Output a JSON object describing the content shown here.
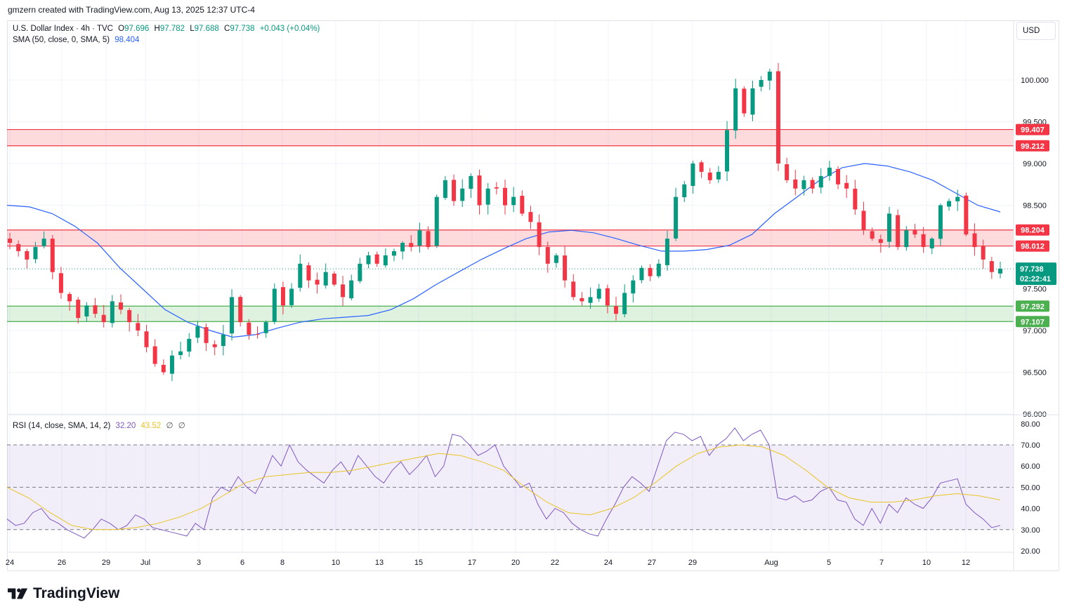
{
  "attribution": "gmzern created with TradingView.com, Aug 13, 2025 12:37 UTC-4",
  "legend": {
    "symbol": "U.S. Dollar Index · 4h · TVC",
    "o_label": "O",
    "o": "97.696",
    "h_label": "H",
    "h": "97.782",
    "l_label": "L",
    "l": "97.688",
    "c_label": "C",
    "c": "97.738",
    "change": "+0.043 (+0.04%)",
    "sma_label": "SMA (50, close, 0, SMA, 5)",
    "sma_value": "98.404",
    "rsi_label": "RSI (14, close, SMA, 14, 2)",
    "rsi_value": "32.20",
    "rsi_ma_value": "43.52",
    "rsi_extra1": "∅",
    "rsi_extra2": "∅"
  },
  "currency": "USD",
  "brand": "TradingView",
  "colors": {
    "up": "#089981",
    "down": "#f23645",
    "sma": "#2962ff",
    "rsi": "#7e57c2",
    "rsi_ma": "#e8c425",
    "resistance_zone": "#f23645",
    "support_zone": "#4caf50"
  },
  "chart_data": [
    {
      "type": "candlestick",
      "title": "U.S. Dollar Index · 4h · TVC",
      "x_tick_labels": [
        "24",
        "26",
        "29",
        "Jul",
        "3",
        "6",
        "8",
        "10",
        "13",
        "15",
        "17",
        "20",
        "22",
        "24",
        "27",
        "29",
        "Aug",
        "5",
        "7",
        "10",
        "12"
      ],
      "y_tick_labels": [
        "96.000",
        "96.500",
        "97.000",
        "97.500",
        "98.000",
        "98.500",
        "99.000",
        "99.500",
        "100.000"
      ],
      "ylim": [
        96.0,
        100.5
      ],
      "price_levels": [
        {
          "label": "99.407",
          "value": 99.407,
          "kind": "resistance"
        },
        {
          "label": "99.212",
          "value": 99.212,
          "kind": "resistance"
        },
        {
          "label": "98.204",
          "value": 98.204,
          "kind": "resistance"
        },
        {
          "label": "98.012",
          "value": 98.012,
          "kind": "resistance"
        },
        {
          "label": "97.292",
          "value": 97.292,
          "kind": "support"
        },
        {
          "label": "97.107",
          "value": 97.107,
          "kind": "support"
        }
      ],
      "last_price": {
        "label": "97.738",
        "value": 97.738,
        "countdown": "02:22:41"
      },
      "close_path": [
        98.05,
        97.95,
        97.85,
        98.0,
        98.1,
        97.7,
        97.45,
        97.35,
        97.15,
        97.3,
        97.2,
        97.1,
        97.35,
        97.25,
        97.1,
        97.0,
        96.8,
        96.6,
        96.5,
        96.7,
        96.75,
        96.9,
        97.05,
        96.85,
        96.8,
        96.95,
        97.4,
        97.1,
        96.95,
        96.95,
        97.1,
        97.5,
        97.3,
        97.5,
        97.8,
        97.6,
        97.55,
        97.7,
        97.55,
        97.4,
        97.6,
        97.8,
        97.9,
        97.8,
        97.9,
        97.95,
        98.05,
        98.0,
        98.2,
        98.0,
        98.6,
        98.8,
        98.55,
        98.7,
        98.85,
        98.5,
        98.7,
        98.7,
        98.5,
        98.6,
        98.4,
        98.3,
        98.0,
        97.8,
        97.9,
        97.6,
        97.4,
        97.35,
        97.4,
        97.5,
        97.3,
        97.2,
        97.45,
        97.6,
        97.75,
        97.65,
        97.8,
        98.1,
        98.6,
        98.75,
        99.0,
        98.9,
        98.8,
        98.9,
        99.4,
        99.9,
        99.6,
        99.9,
        100.0,
        100.1,
        99.0,
        98.8,
        98.7,
        98.8,
        98.7,
        98.85,
        98.95,
        98.75,
        98.7,
        98.45,
        98.2,
        98.1,
        98.05,
        98.4,
        98.0,
        98.2,
        98.15,
        98.0,
        98.1,
        98.5,
        98.55,
        98.6,
        98.15,
        98.0,
        97.85,
        97.7,
        97.74
      ],
      "sma_path": [
        98.5,
        98.48,
        98.4,
        98.25,
        98.05,
        97.75,
        97.5,
        97.25,
        97.1,
        97.0,
        96.92,
        96.95,
        97.03,
        97.1,
        97.14,
        97.16,
        97.18,
        97.25,
        97.38,
        97.55,
        97.7,
        97.85,
        97.98,
        98.1,
        98.18,
        98.2,
        98.17,
        98.1,
        98.02,
        97.95,
        97.95,
        97.97,
        98.02,
        98.15,
        98.4,
        98.6,
        98.8,
        98.95,
        99.0,
        98.97,
        98.9,
        98.8,
        98.65,
        98.5,
        98.42
      ],
      "rsi": {
        "levels": [
          30,
          50,
          70
        ],
        "ylim": [
          20,
          80
        ],
        "y_tick_labels": [
          "20.00",
          "30.00",
          "40.00",
          "50.00",
          "60.00",
          "70.00",
          "80.00"
        ],
        "last": 32.2,
        "ma_last": 43.52,
        "path": [
          35,
          32,
          33,
          38,
          40,
          35,
          33,
          30,
          28,
          26,
          30,
          35,
          33,
          30,
          32,
          37,
          35,
          31,
          30,
          29,
          28,
          27,
          33,
          30,
          45,
          50,
          48,
          55,
          50,
          47,
          55,
          65,
          60,
          70,
          62,
          58,
          55,
          52,
          58,
          62,
          56,
          65,
          60,
          55,
          52,
          58,
          62,
          56,
          60,
          65,
          55,
          60,
          75,
          74,
          70,
          65,
          67,
          70,
          60,
          55,
          50,
          52,
          42,
          35,
          40,
          38,
          33,
          30,
          28,
          27,
          35,
          42,
          50,
          55,
          52,
          48,
          60,
          72,
          76,
          75,
          72,
          74,
          65,
          70,
          73,
          78,
          72,
          75,
          77,
          70,
          45,
          44,
          46,
          43,
          44,
          48,
          50,
          44,
          43,
          35,
          32,
          40,
          33,
          42,
          38,
          45,
          42,
          40,
          45,
          52,
          53,
          54,
          42,
          38,
          35,
          31,
          32
        ],
        "ma_path": [
          50,
          45,
          38,
          32,
          30,
          30,
          31,
          33,
          36,
          40,
          46,
          52,
          55,
          56,
          57,
          57,
          58,
          60,
          62,
          64,
          66,
          65,
          62,
          58,
          50,
          43,
          38,
          37,
          40,
          45,
          52,
          60,
          66,
          69,
          70,
          69,
          65,
          58,
          50,
          45,
          43,
          43,
          44,
          46,
          47,
          46,
          44
        ]
      }
    }
  ]
}
